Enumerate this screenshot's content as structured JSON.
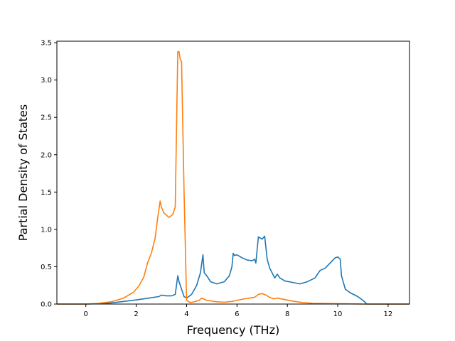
{
  "chart_data": {
    "type": "line",
    "title": "",
    "xlabel": "Frequency (THz)",
    "ylabel": "Partial Density of States",
    "xlim": [
      -1.15,
      12.85
    ],
    "ylim": [
      0,
      3.52
    ],
    "xticks": [
      0,
      2,
      4,
      6,
      8,
      10,
      12
    ],
    "yticks": [
      0.0,
      0.5,
      1.0,
      1.5,
      2.0,
      2.5,
      3.0,
      3.5
    ],
    "xtick_labels": [
      "0",
      "2",
      "4",
      "6",
      "8",
      "10",
      "12"
    ],
    "ytick_labels": [
      "0.0",
      "0.5",
      "1.0",
      "1.5",
      "2.0",
      "2.5",
      "3.0",
      "3.5"
    ],
    "grid": false,
    "legend": "none",
    "series": [
      {
        "color": "#1f77b4",
        "points": [
          [
            -1.15,
            0.0
          ],
          [
            0.0,
            0.0
          ],
          [
            0.5,
            0.005
          ],
          [
            1.0,
            0.015
          ],
          [
            1.5,
            0.035
          ],
          [
            2.0,
            0.055
          ],
          [
            2.5,
            0.08
          ],
          [
            2.9,
            0.1
          ],
          [
            3.0,
            0.12
          ],
          [
            3.2,
            0.11
          ],
          [
            3.4,
            0.11
          ],
          [
            3.55,
            0.13
          ],
          [
            3.65,
            0.38
          ],
          [
            3.7,
            0.3
          ],
          [
            3.8,
            0.2
          ],
          [
            3.9,
            0.1
          ],
          [
            4.0,
            0.08
          ],
          [
            4.2,
            0.13
          ],
          [
            4.4,
            0.25
          ],
          [
            4.55,
            0.42
          ],
          [
            4.65,
            0.66
          ],
          [
            4.7,
            0.42
          ],
          [
            4.8,
            0.38
          ],
          [
            4.95,
            0.3
          ],
          [
            5.2,
            0.27
          ],
          [
            5.5,
            0.3
          ],
          [
            5.7,
            0.38
          ],
          [
            5.8,
            0.5
          ],
          [
            5.85,
            0.68
          ],
          [
            5.9,
            0.65
          ],
          [
            6.0,
            0.66
          ],
          [
            6.2,
            0.62
          ],
          [
            6.4,
            0.59
          ],
          [
            6.6,
            0.58
          ],
          [
            6.7,
            0.6
          ],
          [
            6.75,
            0.55
          ],
          [
            6.85,
            0.9
          ],
          [
            7.0,
            0.87
          ],
          [
            7.1,
            0.91
          ],
          [
            7.2,
            0.6
          ],
          [
            7.3,
            0.48
          ],
          [
            7.5,
            0.35
          ],
          [
            7.6,
            0.4
          ],
          [
            7.7,
            0.35
          ],
          [
            7.9,
            0.31
          ],
          [
            8.2,
            0.29
          ],
          [
            8.5,
            0.27
          ],
          [
            8.8,
            0.3
          ],
          [
            9.1,
            0.35
          ],
          [
            9.3,
            0.45
          ],
          [
            9.5,
            0.48
          ],
          [
            9.7,
            0.55
          ],
          [
            9.9,
            0.62
          ],
          [
            10.0,
            0.63
          ],
          [
            10.1,
            0.6
          ],
          [
            10.15,
            0.38
          ],
          [
            10.3,
            0.2
          ],
          [
            10.5,
            0.15
          ],
          [
            10.8,
            0.1
          ],
          [
            11.0,
            0.05
          ],
          [
            11.1,
            0.02
          ],
          [
            11.15,
            0.0
          ],
          [
            12.85,
            0.0
          ]
        ]
      },
      {
        "color": "#ff7f0e",
        "points": [
          [
            -1.15,
            0.0
          ],
          [
            0.0,
            0.0
          ],
          [
            0.5,
            0.01
          ],
          [
            1.0,
            0.03
          ],
          [
            1.5,
            0.08
          ],
          [
            1.9,
            0.16
          ],
          [
            2.1,
            0.24
          ],
          [
            2.3,
            0.36
          ],
          [
            2.45,
            0.55
          ],
          [
            2.6,
            0.68
          ],
          [
            2.75,
            0.88
          ],
          [
            2.85,
            1.15
          ],
          [
            2.95,
            1.38
          ],
          [
            3.0,
            1.3
          ],
          [
            3.1,
            1.22
          ],
          [
            3.3,
            1.16
          ],
          [
            3.45,
            1.2
          ],
          [
            3.55,
            1.3
          ],
          [
            3.65,
            3.38
          ],
          [
            3.7,
            3.38
          ],
          [
            3.75,
            3.27
          ],
          [
            3.8,
            3.25
          ],
          [
            3.9,
            1.5
          ],
          [
            4.0,
            0.05
          ],
          [
            4.15,
            0.02
          ],
          [
            4.3,
            0.03
          ],
          [
            4.5,
            0.05
          ],
          [
            4.6,
            0.08
          ],
          [
            4.8,
            0.05
          ],
          [
            5.2,
            0.03
          ],
          [
            5.5,
            0.025
          ],
          [
            5.8,
            0.035
          ],
          [
            6.0,
            0.05
          ],
          [
            6.3,
            0.07
          ],
          [
            6.5,
            0.08
          ],
          [
            6.7,
            0.09
          ],
          [
            6.85,
            0.13
          ],
          [
            7.0,
            0.14
          ],
          [
            7.15,
            0.12
          ],
          [
            7.3,
            0.09
          ],
          [
            7.45,
            0.07
          ],
          [
            7.6,
            0.08
          ],
          [
            7.9,
            0.06
          ],
          [
            8.2,
            0.04
          ],
          [
            8.6,
            0.02
          ],
          [
            9.0,
            0.01
          ],
          [
            10.0,
            0.005
          ],
          [
            11.0,
            0.0
          ],
          [
            12.85,
            0.0
          ]
        ]
      }
    ]
  }
}
